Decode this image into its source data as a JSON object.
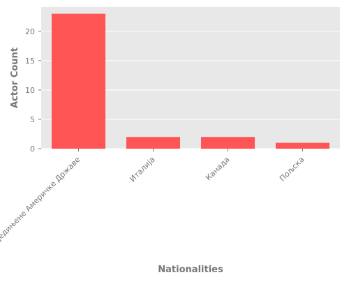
{
  "chart_data": {
    "type": "bar",
    "categories": [
      "Сједињене Америчке Државе",
      "Италија",
      "Канада",
      "Пољска"
    ],
    "values": [
      23,
      2,
      2,
      1
    ],
    "title": "",
    "xlabel": "Nationalities",
    "ylabel": "Actor Count",
    "ylim": [
      0,
      24.15
    ],
    "yticks": [
      0,
      5,
      10,
      15,
      20
    ],
    "grid": true,
    "legend": "none",
    "colors": {
      "bar": "#ff5555",
      "plot_background": "#e8e8e8",
      "grid": "#ffffff",
      "text": "#777777"
    }
  }
}
